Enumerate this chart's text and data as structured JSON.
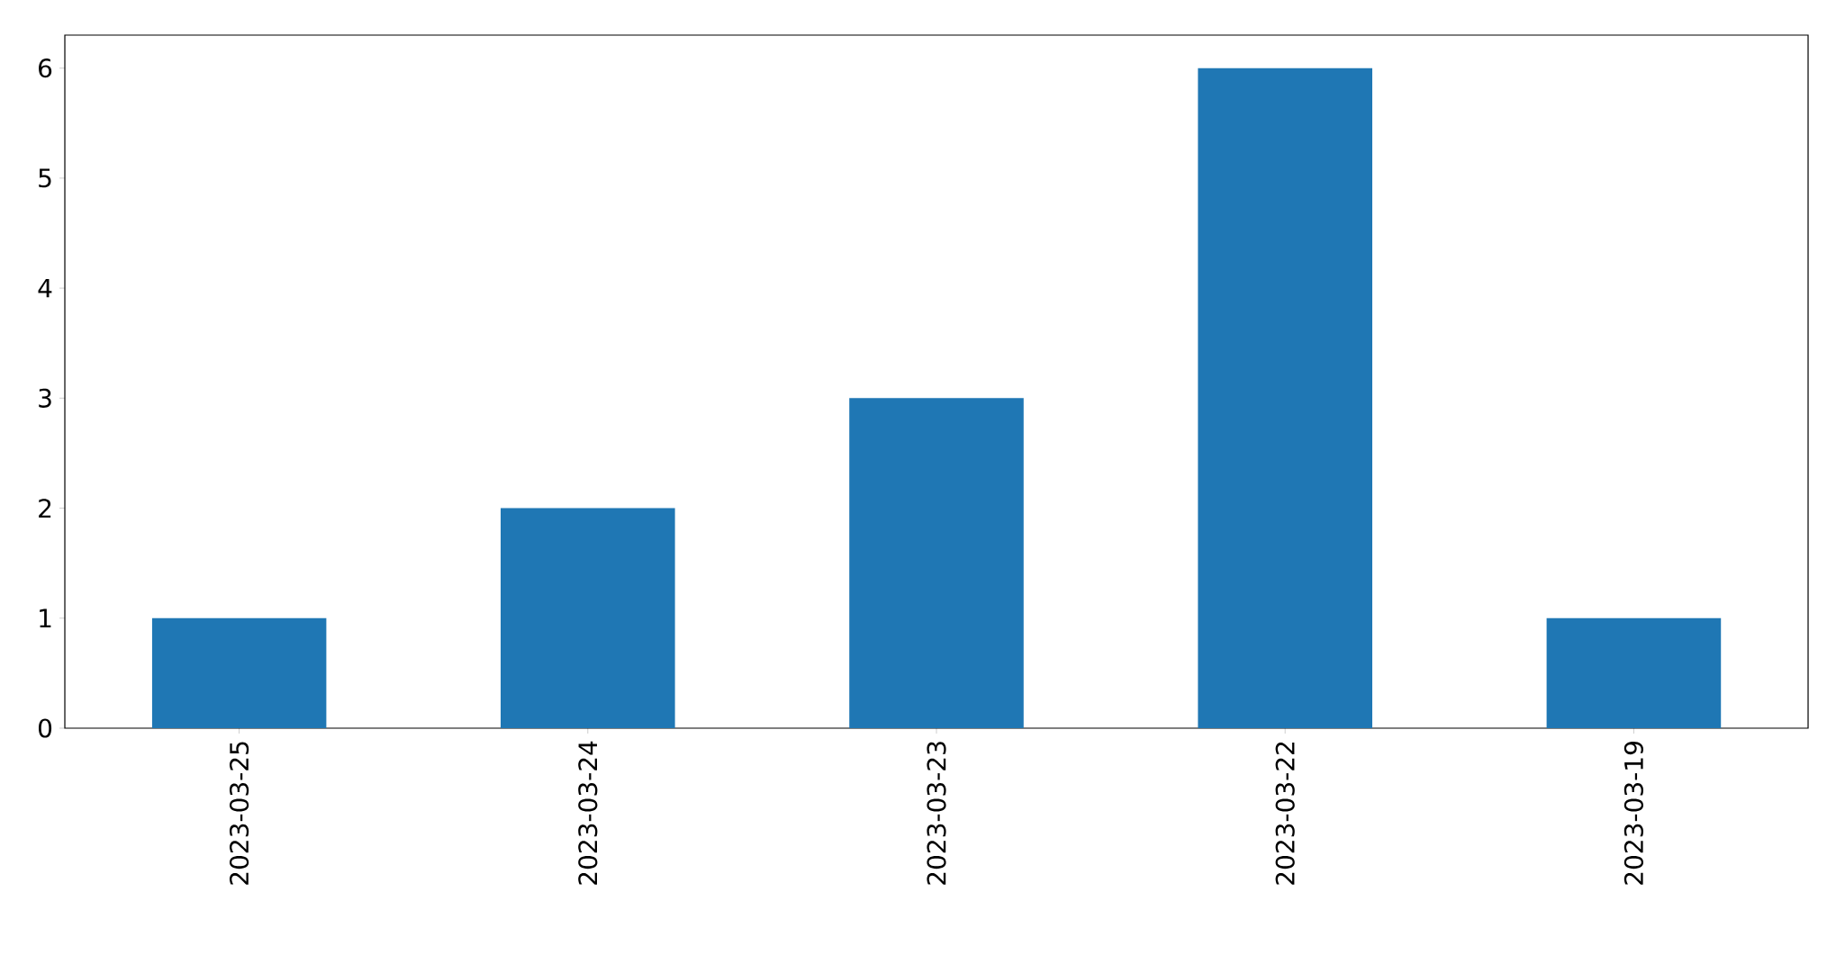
{
  "chart_data": {
    "type": "bar",
    "categories": [
      "2023-03-25",
      "2023-03-24",
      "2023-03-23",
      "2023-03-22",
      "2023-03-19"
    ],
    "values": [
      1,
      2,
      3,
      6,
      1
    ],
    "color": "#1f77b4",
    "ylim": [
      0,
      6.3
    ],
    "yticks": [
      0,
      1,
      2,
      3,
      4,
      5,
      6
    ],
    "grid": false
  }
}
